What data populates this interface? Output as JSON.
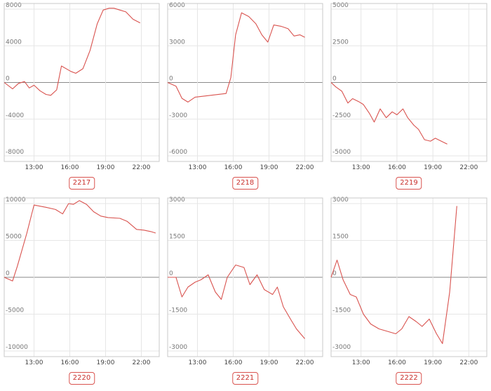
{
  "chart_data": [
    {
      "type": "line",
      "id": "2217",
      "label": "2217",
      "yticks": [
        -8000,
        -4000,
        0,
        4000,
        8000
      ],
      "ylim": [
        -8000,
        8000
      ],
      "xticks": [
        "13:00",
        "16:00",
        "19:00",
        "22:00"
      ],
      "xlim": [
        10.5,
        23.5
      ],
      "grid": true,
      "series": [
        {
          "x": [
            10.5,
            11.2,
            11.7,
            12.2,
            12.6,
            13.0,
            13.5,
            14.0,
            14.4,
            14.9,
            15.3,
            16.1,
            16.5,
            17.1,
            17.7,
            18.3,
            18.8,
            19.3,
            19.7,
            20.2,
            20.7,
            21.3,
            21.9
          ],
          "y": [
            0,
            -700,
            -100,
            100,
            -600,
            -300,
            -900,
            -1300,
            -1400,
            -800,
            1800,
            1200,
            1000,
            1500,
            3500,
            6400,
            7900,
            8100,
            8100,
            7900,
            7700,
            6900,
            6500
          ]
        }
      ]
    },
    {
      "type": "line",
      "id": "2218",
      "label": "2218",
      "yticks": [
        -6000,
        -3000,
        0,
        3000,
        6000
      ],
      "ylim": [
        -6000,
        6000
      ],
      "xticks": [
        "13:00",
        "16:00",
        "19:00",
        "22:00"
      ],
      "xlim": [
        10.5,
        23.5
      ],
      "grid": true,
      "series": [
        {
          "x": [
            10.5,
            11.2,
            11.7,
            12.2,
            12.8,
            15.4,
            15.8,
            16.2,
            16.7,
            17.3,
            17.9,
            18.4,
            18.9,
            19.4,
            20.0,
            20.6,
            21.1,
            21.6,
            22.0
          ],
          "y": [
            0,
            -300,
            -1300,
            -1600,
            -1200,
            -900,
            400,
            3900,
            5700,
            5400,
            4800,
            3900,
            3300,
            4700,
            4600,
            4400,
            3800,
            3900,
            3700
          ]
        }
      ]
    },
    {
      "type": "line",
      "id": "2219",
      "label": "2219",
      "yticks": [
        -5000,
        -2500,
        0,
        2500,
        5000
      ],
      "ylim": [
        -5000,
        5000
      ],
      "xticks": [
        "13:00",
        "16:00",
        "19:00",
        "22:00"
      ],
      "xlim": [
        10.5,
        23.5
      ],
      "grid": true,
      "series": [
        {
          "x": [
            10.5,
            10.9,
            11.4,
            11.9,
            12.3,
            12.8,
            13.2,
            13.7,
            14.1,
            14.6,
            15.1,
            15.6,
            16.0,
            16.5,
            16.9,
            17.4,
            17.8,
            18.3,
            18.8,
            19.2,
            19.7,
            20.2
          ],
          "y": [
            0,
            -300,
            -600,
            -1400,
            -1100,
            -1300,
            -1500,
            -2100,
            -2700,
            -1800,
            -2400,
            -2000,
            -2200,
            -1800,
            -2400,
            -2900,
            -3200,
            -3900,
            -4000,
            -3800,
            -4000,
            -4200
          ]
        }
      ]
    },
    {
      "type": "line",
      "id": "2220",
      "label": "2220",
      "yticks": [
        -10000,
        -5000,
        0,
        5000,
        10000
      ],
      "ylim": [
        -10000,
        10000
      ],
      "xticks": [
        "13:00",
        "16:00",
        "19:00",
        "22:00"
      ],
      "xlim": [
        10.5,
        23.5
      ],
      "grid": true,
      "series": [
        {
          "x": [
            10.5,
            11.2,
            11.6,
            12.4,
            13.0,
            14.0,
            14.8,
            15.4,
            15.9,
            16.3,
            16.8,
            17.4,
            18.0,
            18.6,
            19.2,
            20.2,
            20.8,
            21.6,
            22.2,
            22.8,
            23.2
          ],
          "y": [
            0,
            -500,
            1500,
            6000,
            9800,
            9500,
            9200,
            8600,
            10000,
            9900,
            10400,
            9900,
            8900,
            8300,
            8100,
            8000,
            7600,
            6500,
            6400,
            6200,
            6000
          ]
        }
      ]
    },
    {
      "type": "line",
      "id": "2221",
      "label": "2221",
      "yticks": [
        -3000,
        -1500,
        0,
        1500,
        3000
      ],
      "ylim": [
        -3000,
        3000
      ],
      "xticks": [
        "13:00",
        "16:00",
        "19:00",
        "22:00"
      ],
      "xlim": [
        10.5,
        23.5
      ],
      "grid": true,
      "series": [
        {
          "x": [
            10.5,
            11.2,
            11.7,
            12.2,
            12.8,
            13.3,
            13.9,
            14.5,
            15.0,
            15.5,
            16.2,
            16.9,
            17.4,
            18.0,
            18.6,
            19.3,
            19.7,
            20.2,
            20.8,
            21.3,
            22.0
          ],
          "y": [
            0,
            0,
            -800,
            -400,
            -200,
            -100,
            100,
            -600,
            -900,
            0,
            500,
            400,
            -300,
            100,
            -500,
            -700,
            -400,
            -1200,
            -1700,
            -2100,
            -2500
          ]
        }
      ]
    },
    {
      "type": "line",
      "id": "2222",
      "label": "2222",
      "yticks": [
        -3000,
        -1500,
        0,
        1500,
        3000
      ],
      "ylim": [
        -3000,
        3000
      ],
      "xticks": [
        "13:00",
        "16:00",
        "19:00",
        "22:00"
      ],
      "xlim": [
        10.5,
        23.5
      ],
      "grid": true,
      "series": [
        {
          "x": [
            10.5,
            11.0,
            11.5,
            12.1,
            12.6,
            13.2,
            13.8,
            14.5,
            15.2,
            15.9,
            16.4,
            17.0,
            17.6,
            18.1,
            18.7,
            19.3,
            19.8,
            20.4,
            21.0
          ],
          "y": [
            0,
            700,
            -100,
            -700,
            -800,
            -1500,
            -1900,
            -2100,
            -2200,
            -2300,
            -2100,
            -1600,
            -1800,
            -2000,
            -1700,
            -2300,
            -2700,
            -600,
            2900
          ]
        }
      ]
    }
  ]
}
